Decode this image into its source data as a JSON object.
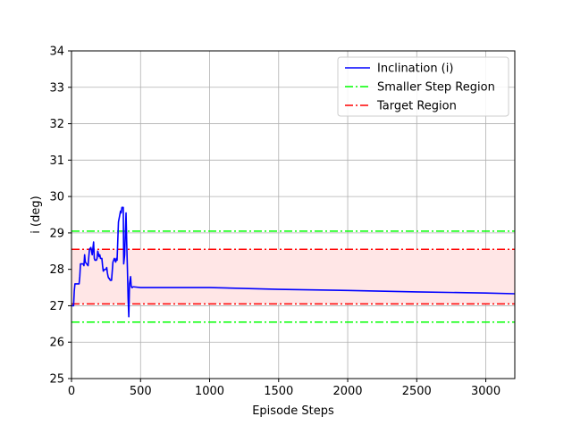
{
  "chart_data": {
    "type": "line",
    "xlabel": "Episode Steps",
    "ylabel": "i (deg)",
    "xlim": [
      0,
      3210
    ],
    "ylim": [
      25,
      34
    ],
    "xticks": [
      0,
      500,
      1000,
      1500,
      2000,
      2500,
      3000
    ],
    "yticks": [
      25,
      26,
      27,
      28,
      29,
      30,
      31,
      32,
      33,
      34
    ],
    "grid": true,
    "legend_position": "upper right",
    "legend": [
      "Inclination (i)",
      "Smaller Step Region",
      "Target Region"
    ],
    "series": [
      {
        "name": "Inclination (i)",
        "color": "#0000ff",
        "style": "solid",
        "x": [
          0,
          15,
          20,
          25,
          55,
          60,
          65,
          85,
          90,
          95,
          100,
          110,
          120,
          130,
          140,
          145,
          150,
          160,
          165,
          170,
          180,
          185,
          190,
          200,
          205,
          210,
          220,
          225,
          230,
          240,
          250,
          255,
          260,
          265,
          270,
          275,
          280,
          290,
          300,
          305,
          310,
          320,
          325,
          330,
          340,
          350,
          355,
          360,
          365,
          375,
          378,
          385,
          390,
          395,
          400,
          405,
          410,
          415,
          420,
          428,
          432,
          436,
          440,
          445,
          450,
          500,
          1000,
          1500,
          2000,
          2500,
          3000,
          3210
        ],
        "y": [
          27.0,
          27.0,
          27.4,
          27.6,
          27.6,
          27.8,
          28.15,
          28.15,
          28.1,
          28.4,
          28.2,
          28.15,
          28.1,
          28.55,
          28.6,
          28.5,
          28.4,
          28.75,
          28.3,
          28.25,
          28.25,
          28.3,
          28.5,
          28.35,
          28.4,
          28.3,
          28.3,
          28.1,
          27.95,
          28.0,
          28.0,
          28.05,
          27.9,
          27.8,
          27.75,
          27.75,
          27.7,
          27.7,
          28.2,
          28.25,
          28.3,
          28.2,
          28.3,
          28.25,
          29.3,
          29.5,
          29.6,
          29.55,
          29.7,
          29.7,
          28.15,
          28.4,
          29.0,
          29.55,
          28.7,
          28.0,
          27.2,
          26.7,
          27.6,
          27.8,
          27.55,
          27.5,
          27.5,
          27.52,
          27.52,
          27.5,
          27.5,
          27.45,
          27.42,
          27.38,
          27.35,
          27.33
        ]
      },
      {
        "name": "Smaller Step Region",
        "color": "#00ff00",
        "style": "dashdot",
        "levels": [
          29.05,
          26.55
        ]
      },
      {
        "name": "Target Region",
        "color": "#ff0000",
        "style": "dashdot",
        "levels": [
          28.55,
          27.05
        ]
      }
    ],
    "shaded_region": {
      "y_top_start": 28.55,
      "y_top_end": 28.55,
      "y_bottom_start": 27.05,
      "y_bottom_end": 27.05,
      "color": "#ffe6e6"
    }
  }
}
